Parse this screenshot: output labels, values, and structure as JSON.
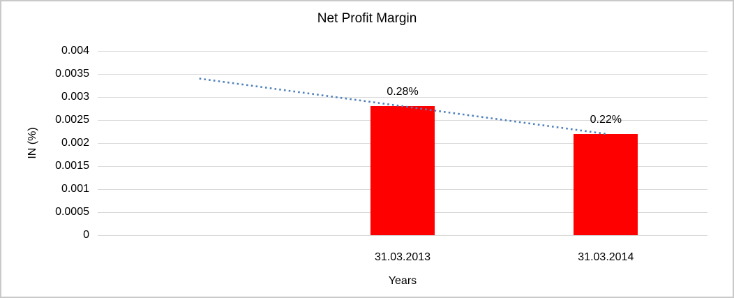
{
  "title": "Net Profit Margin",
  "y_axis": {
    "label": "IN (%)",
    "tick_labels": [
      "0.004",
      "0.0035",
      "0.003",
      "0.0025",
      "0.002",
      "0.0015",
      "0.001",
      "0.0005",
      "0"
    ]
  },
  "x_axis": {
    "label": "Years",
    "tick_labels": [
      "31.03.2013",
      "31.03.2014"
    ]
  },
  "colors": {
    "bar": "#FF0000",
    "trendline": "#4F81BD",
    "gridline": "#D9D9D9",
    "text": "#000000",
    "chart_border": "#C9C9C9",
    "background": "#FFFFFF"
  },
  "chart_data": {
    "type": "bar",
    "title": "Net Profit Margin",
    "xlabel": "Years",
    "ylabel": "IN (%)",
    "categories": [
      "",
      "31.03.2013",
      "31.03.2014"
    ],
    "values": [
      null,
      0.0028,
      0.0022
    ],
    "data_labels": [
      null,
      "0.28%",
      "0.22%"
    ],
    "bar_color": "#FF0000",
    "ylim": [
      0,
      0.004
    ],
    "y_tick_step": 0.0005,
    "grid": true,
    "legend": "none",
    "trendline": {
      "type": "linear",
      "style": "dotted",
      "color": "#4F81BD",
      "start": {
        "category_index": 0,
        "value": 0.0034
      },
      "end": {
        "category_index": 2,
        "value": 0.0022
      }
    }
  }
}
